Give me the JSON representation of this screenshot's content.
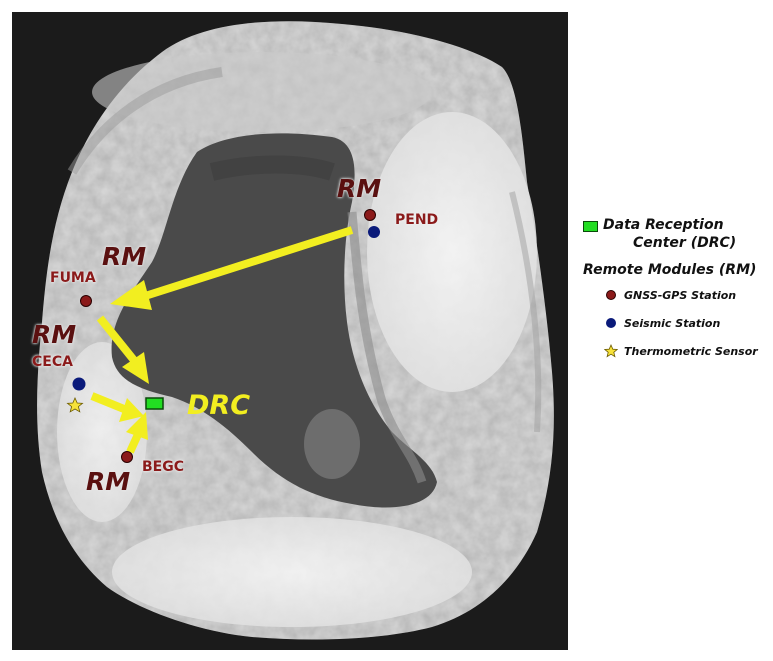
{
  "map": {
    "colors": {
      "background": "#1b1b1b",
      "land": "#d9d9d9",
      "bay": "#4a4a4a",
      "arrow": "#f2ee20",
      "gnss": "#8b1a1a",
      "seismic": "#0a1a7a",
      "thermometric": "#f7e23a",
      "drc": "#22dd22"
    },
    "markers": {
      "rm_label": "RM",
      "drc_label": "DRC"
    },
    "stations": [
      {
        "code": "PEND"
      },
      {
        "code": "FUMA"
      },
      {
        "code": "CECA"
      },
      {
        "code": "BEGC"
      }
    ]
  },
  "legend": {
    "drc_title_line1": "Data Reception",
    "drc_title_line2": "Center (DRC)",
    "rm_title": "Remote Modules (RM)",
    "items": [
      {
        "label": "GNSS-GPS Station",
        "icon": "gnss-station-icon"
      },
      {
        "label": "Seismic Station",
        "icon": "seismic-station-icon"
      },
      {
        "label": "Thermometric Sensor",
        "icon": "thermometric-sensor-icon"
      }
    ]
  }
}
